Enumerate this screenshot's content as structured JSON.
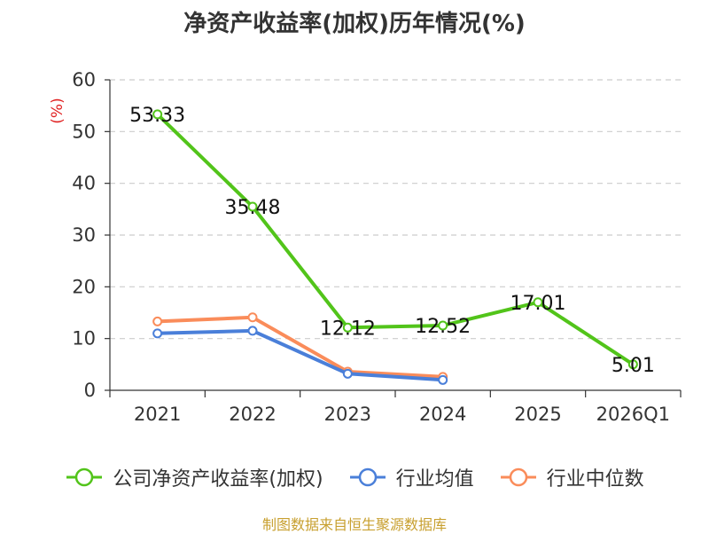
{
  "chart_data": {
    "type": "line",
    "title": "净资产收益率(加权)历年情况(%)",
    "ylabel": "(%)",
    "xlabel": "",
    "ylim": [
      0,
      60
    ],
    "yticks": [
      0,
      10,
      20,
      30,
      40,
      50,
      60
    ],
    "categories": [
      "2021",
      "2022",
      "2023",
      "2024",
      "2025",
      "2026Q1"
    ],
    "grid": true,
    "legend_position": "bottom",
    "series": [
      {
        "name": "公司净资产收益率(加权)",
        "color": "#52c41a",
        "values": [
          53.33,
          35.48,
          12.12,
          12.52,
          17.01,
          5.01
        ],
        "labels": [
          "53.33",
          "35.48",
          "12.12",
          "12.52",
          "17.01",
          "5.01"
        ]
      },
      {
        "name": "行业均值",
        "color": "#4a7fd9",
        "values": [
          11.0,
          11.5,
          3.2,
          2.0,
          null,
          null
        ]
      },
      {
        "name": "行业中位数",
        "color": "#fa8c5a",
        "values": [
          13.3,
          14.1,
          3.6,
          2.6,
          null,
          null
        ]
      }
    ]
  },
  "footer": {
    "source": "制图数据来自恒生聚源数据库"
  }
}
